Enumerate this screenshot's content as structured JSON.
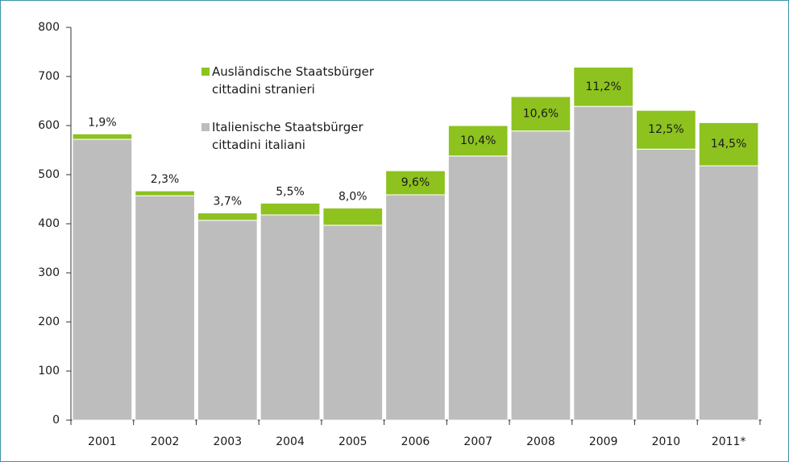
{
  "chart_data": {
    "type": "stacked_bar",
    "categories": [
      "2001",
      "2002",
      "2003",
      "2004",
      "2005",
      "2006",
      "2007",
      "2008",
      "2009",
      "2010",
      "2011*"
    ],
    "series": [
      {
        "name": "Italienische Staatsbürger\ncittadini italiani",
        "color": "#bdbdbd",
        "values": [
          572,
          457,
          407,
          418,
          397,
          459,
          538,
          589,
          639,
          552,
          518
        ]
      },
      {
        "name": "Ausländische Staatsbürger\ncittadini stranieri",
        "color": "#8dc21f",
        "values": [
          11,
          10,
          15,
          24,
          35,
          49,
          62,
          70,
          80,
          79,
          88
        ],
        "percent_values": [
          1.9,
          2.3,
          3.7,
          5.5,
          8.0,
          9.6,
          10.4,
          10.6,
          11.2,
          12.5,
          14.5
        ],
        "percent_labels": [
          "1,9%",
          "2,3%",
          "3,7%",
          "5,5%",
          "8,0%",
          "9,6%",
          "10,4%",
          "10,6%",
          "11,2%",
          "12,5%",
          "14,5%"
        ]
      }
    ],
    "ylim": [
      0,
      800
    ],
    "yticks": [
      0,
      100,
      200,
      300,
      400,
      500,
      600,
      700,
      800
    ],
    "grid": false
  }
}
